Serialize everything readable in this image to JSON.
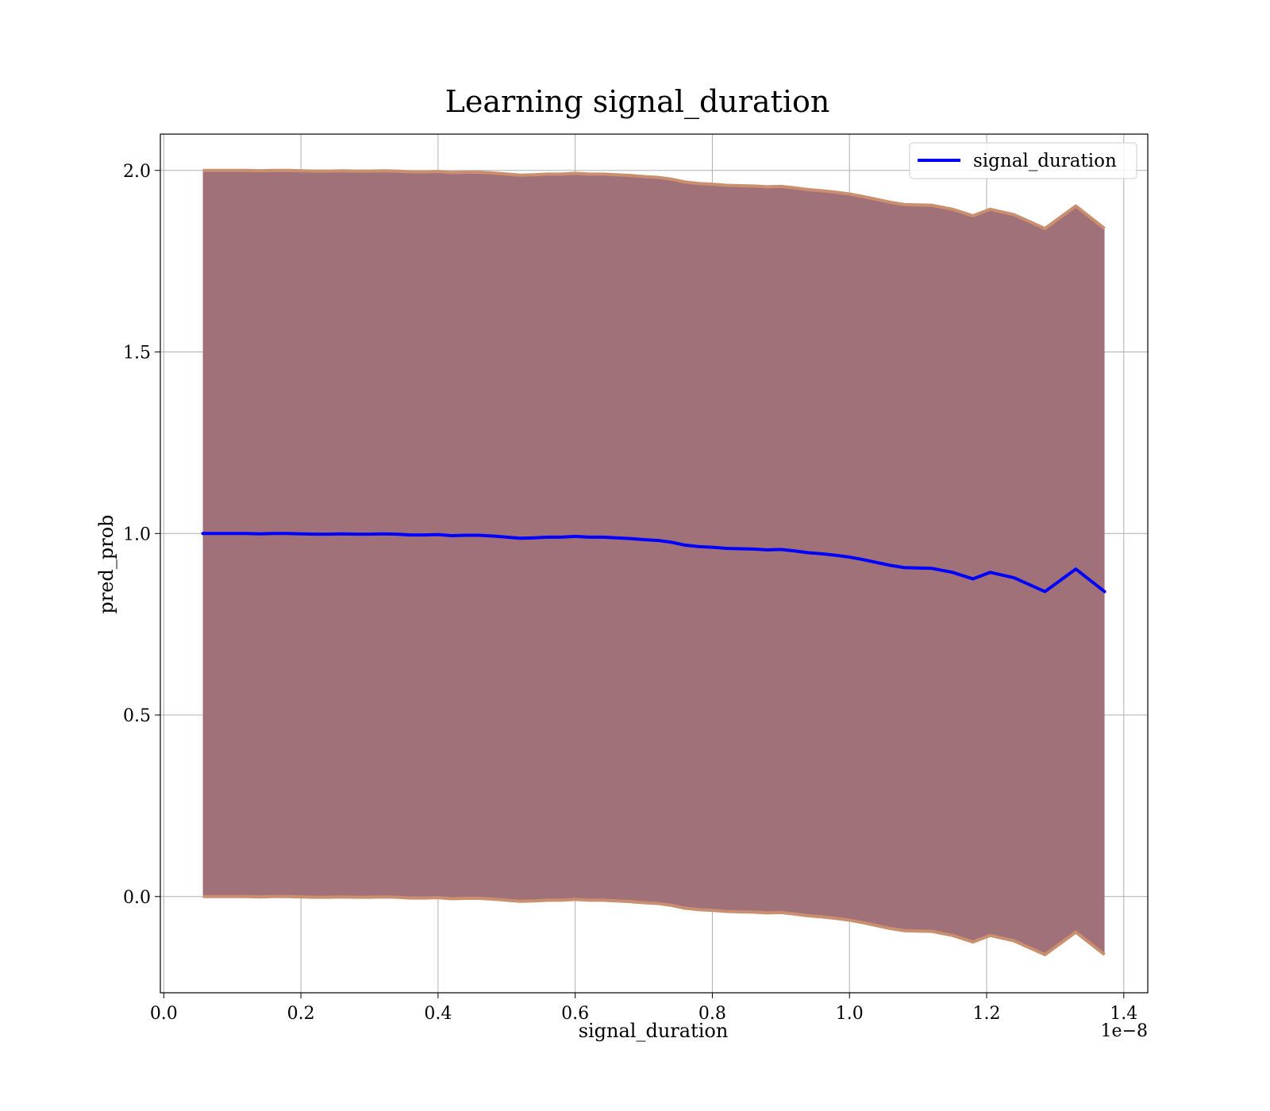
{
  "chart_data": {
    "type": "line",
    "title": "Learning signal_duration",
    "xlabel": "signal_duration",
    "ylabel": "pred_prob",
    "x_offset_label": "1e−8",
    "xlim": [
      -0.005,
      1.435
    ],
    "ylim": [
      -0.265,
      2.1
    ],
    "x_ticks": [
      0.0,
      0.2,
      0.4,
      0.6,
      0.8,
      1.0,
      1.2,
      1.4
    ],
    "x_tick_labels": [
      "0.0",
      "0.2",
      "0.4",
      "0.6",
      "0.8",
      "1.0",
      "1.2",
      "1.4"
    ],
    "y_ticks": [
      0.0,
      0.5,
      1.0,
      1.5,
      2.0
    ],
    "y_tick_labels": [
      "0.0",
      "0.5",
      "1.0",
      "1.5",
      "2.0"
    ],
    "grid": true,
    "legend_position": "top-right",
    "series": [
      {
        "name": "signal_duration",
        "color": "#0000ff",
        "x": [
          0.057,
          0.08,
          0.1,
          0.12,
          0.14,
          0.16,
          0.18,
          0.2,
          0.22,
          0.24,
          0.26,
          0.28,
          0.3,
          0.32,
          0.34,
          0.36,
          0.38,
          0.4,
          0.42,
          0.44,
          0.46,
          0.48,
          0.5,
          0.52,
          0.54,
          0.56,
          0.58,
          0.6,
          0.62,
          0.64,
          0.66,
          0.68,
          0.7,
          0.72,
          0.74,
          0.76,
          0.78,
          0.8,
          0.82,
          0.84,
          0.86,
          0.88,
          0.9,
          0.92,
          0.94,
          0.96,
          0.98,
          1.0,
          1.02,
          1.04,
          1.06,
          1.08,
          1.1,
          1.12,
          1.15,
          1.18,
          1.205,
          1.24,
          1.285,
          1.33,
          1.372
        ],
        "values": [
          1.0,
          1.0,
          1.0,
          1.0,
          0.999,
          1.0,
          1.0,
          0.999,
          0.998,
          0.998,
          0.999,
          0.998,
          0.998,
          0.999,
          0.998,
          0.996,
          0.996,
          0.997,
          0.994,
          0.995,
          0.995,
          0.993,
          0.99,
          0.987,
          0.988,
          0.99,
          0.99,
          0.992,
          0.99,
          0.99,
          0.988,
          0.986,
          0.983,
          0.981,
          0.976,
          0.968,
          0.964,
          0.962,
          0.959,
          0.958,
          0.957,
          0.955,
          0.956,
          0.952,
          0.947,
          0.944,
          0.94,
          0.935,
          0.928,
          0.92,
          0.912,
          0.906,
          0.905,
          0.904,
          0.893,
          0.875,
          0.893,
          0.878,
          0.84,
          0.902,
          0.84
        ]
      }
    ],
    "band": {
      "fill_color": "#a1717a",
      "edge_color": "#c98f6e",
      "upper": [
        2.0,
        2.0,
        2.0,
        2.0,
        1.999,
        2.0,
        2.0,
        1.999,
        1.998,
        1.998,
        1.999,
        1.998,
        1.998,
        1.999,
        1.998,
        1.996,
        1.996,
        1.997,
        1.994,
        1.995,
        1.995,
        1.993,
        1.99,
        1.987,
        1.988,
        1.99,
        1.99,
        1.992,
        1.99,
        1.99,
        1.988,
        1.986,
        1.983,
        1.981,
        1.976,
        1.968,
        1.964,
        1.962,
        1.959,
        1.958,
        1.957,
        1.955,
        1.956,
        1.952,
        1.947,
        1.944,
        1.94,
        1.935,
        1.928,
        1.92,
        1.912,
        1.906,
        1.905,
        1.904,
        1.893,
        1.875,
        1.893,
        1.878,
        1.84,
        1.902,
        1.84
      ],
      "lower": [
        0.0,
        0.0,
        0.0,
        0.0,
        -0.001,
        0.0,
        0.0,
        -0.001,
        -0.002,
        -0.002,
        -0.001,
        -0.002,
        -0.002,
        -0.001,
        -0.002,
        -0.004,
        -0.004,
        -0.003,
        -0.006,
        -0.005,
        -0.005,
        -0.007,
        -0.01,
        -0.013,
        -0.012,
        -0.01,
        -0.01,
        -0.008,
        -0.01,
        -0.01,
        -0.012,
        -0.014,
        -0.017,
        -0.019,
        -0.024,
        -0.032,
        -0.036,
        -0.038,
        -0.041,
        -0.042,
        -0.043,
        -0.045,
        -0.044,
        -0.048,
        -0.053,
        -0.056,
        -0.06,
        -0.065,
        -0.072,
        -0.08,
        -0.088,
        -0.094,
        -0.095,
        -0.096,
        -0.107,
        -0.125,
        -0.107,
        -0.122,
        -0.16,
        -0.098,
        -0.16
      ]
    }
  }
}
